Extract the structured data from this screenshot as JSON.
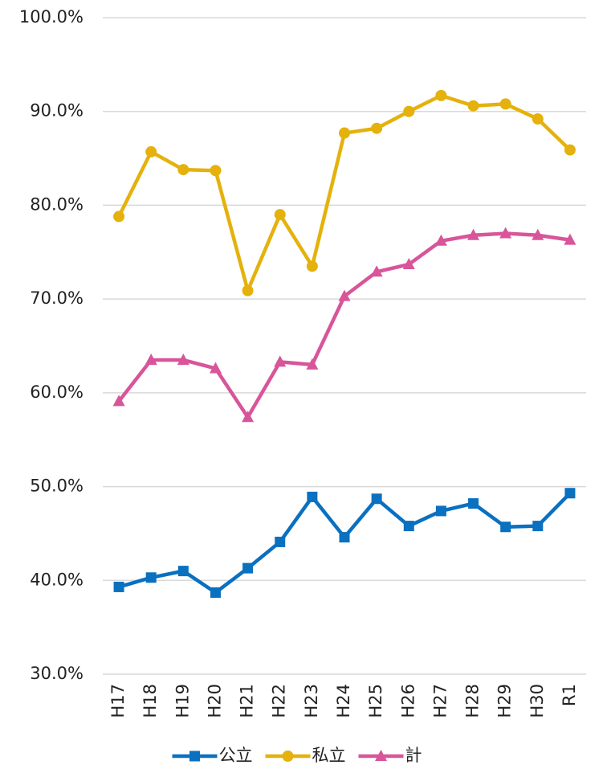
{
  "chart_data": {
    "type": "line",
    "categories": [
      "H17",
      "H18",
      "H19",
      "H20",
      "H21",
      "H22",
      "H23",
      "H24",
      "H25",
      "H26",
      "H27",
      "H28",
      "H29",
      "H30",
      "R1"
    ],
    "series": [
      {
        "name": "公立",
        "color": "#0a70c0",
        "marker": "square",
        "values": [
          39.3,
          40.3,
          41.0,
          38.7,
          41.3,
          44.1,
          48.9,
          44.6,
          48.7,
          45.8,
          47.4,
          48.2,
          45.7,
          45.8,
          49.3
        ]
      },
      {
        "name": "私立",
        "color": "#e5b10c",
        "marker": "circle",
        "values": [
          78.8,
          85.7,
          83.8,
          83.7,
          70.9,
          79.0,
          73.5,
          87.7,
          88.2,
          90.0,
          91.7,
          90.6,
          90.8,
          89.2,
          85.9
        ]
      },
      {
        "name": "計",
        "color": "#d8559a",
        "marker": "triangle",
        "values": [
          59.1,
          63.5,
          63.5,
          62.6,
          57.4,
          63.3,
          63.0,
          70.3,
          72.9,
          73.7,
          76.2,
          76.8,
          77.0,
          76.8,
          76.3
        ]
      }
    ],
    "ylim": [
      30,
      100
    ],
    "yticks": [
      {
        "value": 30,
        "label": "30.0%"
      },
      {
        "value": 40,
        "label": "40.0%"
      },
      {
        "value": 50,
        "label": "50.0%"
      },
      {
        "value": 60,
        "label": "60.0%"
      },
      {
        "value": 70,
        "label": "70.0%"
      },
      {
        "value": 80,
        "label": "80.0%"
      },
      {
        "value": 90,
        "label": "90.0%"
      },
      {
        "value": 100,
        "label": "100.0%"
      }
    ],
    "grid": true,
    "legend": "bottom"
  }
}
